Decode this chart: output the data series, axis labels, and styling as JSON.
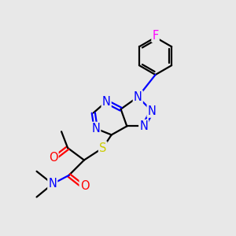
{
  "bg_color": "#e8e8e8",
  "bond_color": "#000000",
  "bond_width": 1.6,
  "atom_colors": {
    "N": "#0000ff",
    "O": "#ff0000",
    "S": "#cccc00",
    "F": "#ff00ff"
  },
  "font_size": 10.5
}
